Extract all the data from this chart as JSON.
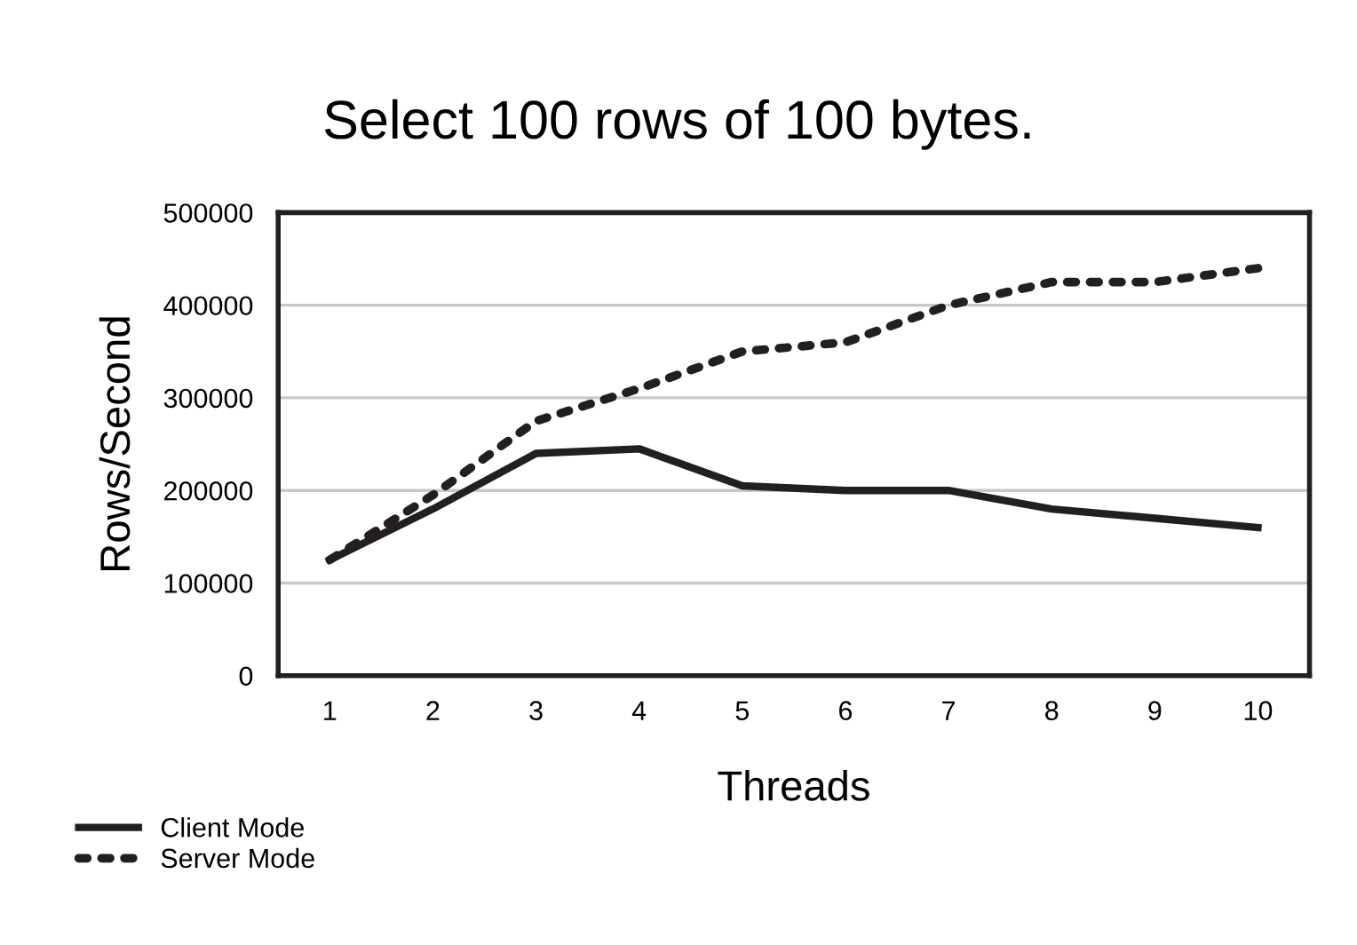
{
  "chart_data": {
    "type": "line",
    "title": "Select 100 rows of 100 bytes.",
    "xlabel": "Threads",
    "ylabel": "Rows/Second",
    "categories": [
      "1",
      "2",
      "3",
      "4",
      "5",
      "6",
      "7",
      "8",
      "9",
      "10"
    ],
    "series": [
      {
        "name": "Client Mode",
        "color": "#231f20",
        "line_style": "solid",
        "values": [
          125000,
          180000,
          240000,
          245000,
          205000,
          200000,
          200000,
          180000,
          170000,
          160000
        ]
      },
      {
        "name": "Server Mode",
        "color": "#231f20",
        "line_style": "dotted",
        "values": [
          125000,
          195000,
          275000,
          310000,
          350000,
          360000,
          400000,
          425000,
          425000,
          440000
        ]
      }
    ],
    "ylim": [
      0,
      500000
    ],
    "yticks": [
      0,
      100000,
      200000,
      300000,
      400000,
      500000
    ],
    "grid": "y",
    "legend": "bottom left",
    "marker": "none"
  }
}
